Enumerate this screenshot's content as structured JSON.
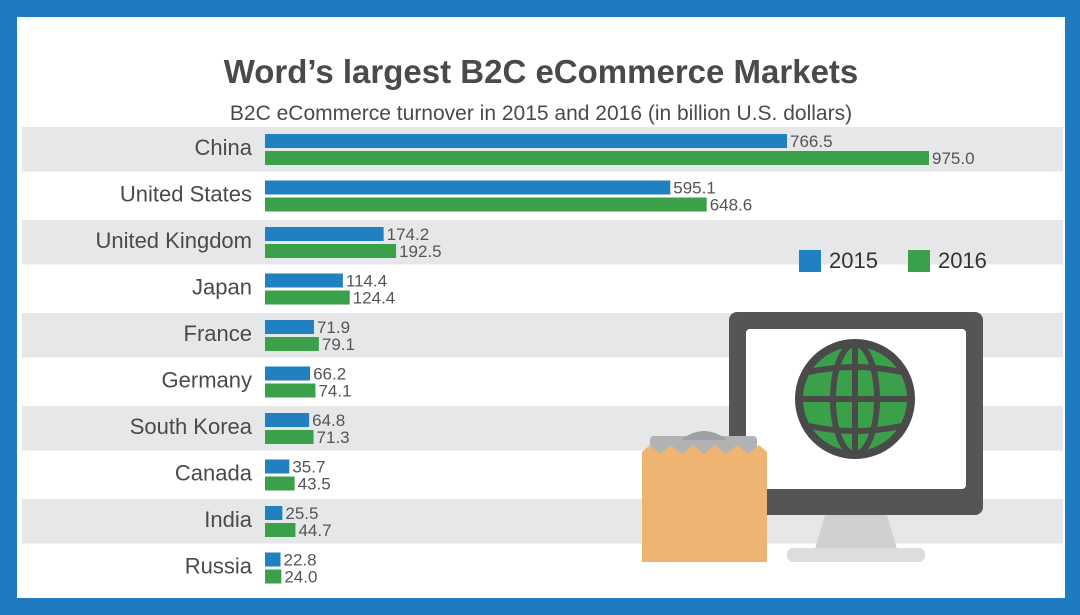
{
  "title": "Word’s largest B2C eCommerce Markets",
  "subtitle": "B2C eCommerce turnover in 2015 and 2016 (in billion U.S. dollars)",
  "colors": {
    "frame": "#1e7bbf",
    "series_2015": "#2180c0",
    "series_2016": "#3aa14a",
    "row_band": "#e6e7e8"
  },
  "icons": [
    "monitor-icon",
    "globe-icon",
    "shopping-bag-icon"
  ],
  "chart_data": {
    "type": "bar",
    "orientation": "horizontal",
    "categories": [
      "China",
      "United States",
      "United Kingdom",
      "Japan",
      "France",
      "Germany",
      "South Korea",
      "Canada",
      "India",
      "Russia"
    ],
    "series": [
      {
        "name": "2015",
        "values": [
          766.5,
          595.1,
          174.2,
          114.4,
          71.9,
          66.2,
          64.8,
          35.7,
          25.5,
          22.8
        ],
        "labels": [
          "766.5",
          "595.1",
          "174.2",
          "114.4",
          "71.9",
          "66.2",
          "64.8",
          "35.7",
          "25.5",
          "22.8"
        ]
      },
      {
        "name": "2016",
        "values": [
          975.0,
          648.6,
          192.5,
          124.4,
          79.1,
          74.1,
          71.3,
          43.5,
          44.7,
          24.0
        ],
        "labels": [
          "975.0",
          "648.6",
          "192.5",
          "124.4",
          "79.1",
          "74.1",
          "71.3",
          "43.5",
          "44.7",
          "24.0"
        ]
      }
    ],
    "xlim": [
      0,
      975
    ],
    "legend_position": "right",
    "grid": false
  }
}
